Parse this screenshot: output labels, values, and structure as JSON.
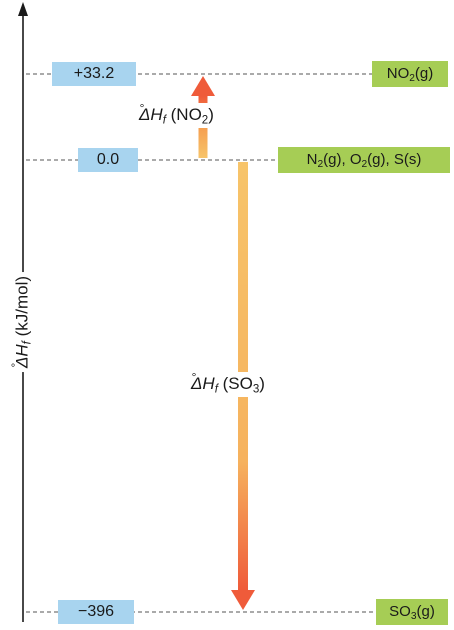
{
  "axis": {
    "label_delta": "ΔH",
    "label_sub": "f",
    "label_deg": "°",
    "label_unit": " (kJ/mol)"
  },
  "levels": [
    {
      "value": 33.2,
      "value_text": "+33.2",
      "species_html": "NO<span class=\"sub\">2</span>(g)",
      "species_text": "NO2(g)"
    },
    {
      "value": 0.0,
      "value_text": "0.0",
      "species_html": "N<span class=\"sub\">2</span>(g), O<span class=\"sub\">2</span>(g), S(s)",
      "species_text": "N2(g), O2(g), S(s)"
    },
    {
      "value": -396,
      "value_text": "−396",
      "species_html": "SO<span class=\"sub\">3</span>(g)",
      "species_text": "SO3(g)"
    }
  ],
  "arrows": [
    {
      "from": 0.0,
      "to": 33.2,
      "label_delta": "ΔH",
      "label_sub": "f",
      "label_deg": "°",
      "label_species": " (NO",
      "label_species_sub": "2",
      "label_close": ")"
    },
    {
      "from": 0.0,
      "to": -396,
      "label_delta": "ΔH",
      "label_sub": "f",
      "label_deg": "°",
      "label_species": " (SO",
      "label_species_sub": "3",
      "label_close": ")"
    }
  ],
  "colors": {
    "axis": "#1a1a1a",
    "dashed_line": "#777777",
    "value_box": "#a8d4ef",
    "species_box": "#a6cd55",
    "arrow_start": "#f7c46a",
    "arrow_end": "#ef5b3a"
  }
}
